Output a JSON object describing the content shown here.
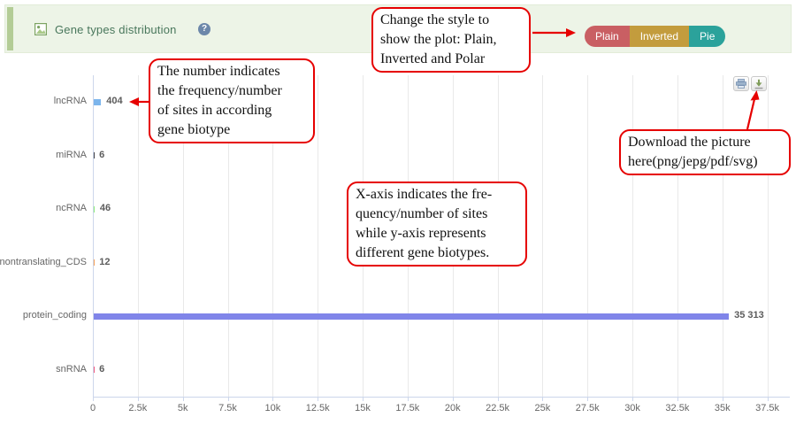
{
  "header": {
    "title": "Gene types distribution",
    "help_glyph": "?",
    "image_icon": "image-thumbnail",
    "background": "#edf4e7",
    "stripe_color": "#b3cc96",
    "title_color": "#49775c"
  },
  "style_buttons": [
    {
      "label": "Plain",
      "color": "#c95f63"
    },
    {
      "label": "Inverted",
      "color": "#c39c3d"
    },
    {
      "label": "Pie",
      "color": "#2ba29b"
    }
  ],
  "export_toolbar": {
    "print_icon": "printer",
    "download_icon": "download"
  },
  "callouts": [
    {
      "name": "style-note",
      "lines": [
        "Change the style to",
        "show the plot: Plain,",
        "Inverted and Polar"
      ]
    },
    {
      "name": "number-note",
      "lines": [
        "The number indicates",
        "the frequency/number",
        "of sites in according",
        "gene biotype"
      ]
    },
    {
      "name": "axes-note",
      "lines": [
        "X-axis indicates the fre-",
        "quency/number of sites",
        "while y-axis represents",
        "different gene biotypes."
      ]
    },
    {
      "name": "download-note",
      "lines": [
        "Download the picture",
        "here(png/jepg/pdf/svg)"
      ]
    }
  ],
  "annotation_color": "#e60000",
  "chart_data": {
    "type": "bar",
    "orientation": "horizontal",
    "title": "",
    "xlabel": "",
    "ylabel": "",
    "grid": true,
    "legend": false,
    "categories": [
      "lncRNA",
      "miRNA",
      "ncRNA",
      "nontranslating_CDS",
      "protein_coding",
      "snRNA"
    ],
    "values": [
      404,
      6,
      46,
      12,
      35313,
      6
    ],
    "value_labels": [
      "404",
      "6",
      "46",
      "12",
      "35 313",
      "6"
    ],
    "bar_colors": [
      "#7cb5ec",
      "#434348",
      "#90ed7d",
      "#f7a35c",
      "#8085e9",
      "#f15c80"
    ],
    "x_tick_labels": [
      "0",
      "2.5k",
      "5k",
      "7.5k",
      "10k",
      "12.5k",
      "15k",
      "17.5k",
      "20k",
      "22.5k",
      "25k",
      "27.5k",
      "30k",
      "32.5k",
      "35k",
      "37.5k"
    ],
    "x_tick_values": [
      0,
      2500,
      5000,
      7500,
      10000,
      12500,
      15000,
      17500,
      20000,
      22500,
      25000,
      27500,
      30000,
      32500,
      35000,
      37500
    ],
    "xlim": [
      0,
      38750
    ],
    "axis_color": "#ccd6eb",
    "grid_color": "#e9e9e9",
    "label_color": "#666666"
  }
}
